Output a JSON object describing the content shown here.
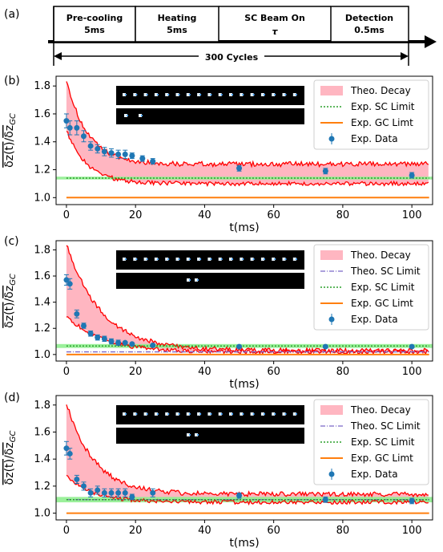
{
  "timeline": {
    "label": "(a)",
    "segments": [
      {
        "line1": "Pre-cooling",
        "line2": "5ms"
      },
      {
        "line1": "Heating",
        "line2": "5ms"
      },
      {
        "line1": "SC Beam On",
        "line2": "τ"
      },
      {
        "line1": "Detection",
        "line2": "0.5ms"
      }
    ],
    "cycles": "300 Cycles"
  },
  "colors": {
    "fill": "#ffb6c1",
    "curve": "#ff0000",
    "sc_exp": "#2ca02c",
    "band": "#90ee90",
    "gc": "#ff7f0e",
    "theo_sc": "#7b68c8",
    "data": "#1f77b4"
  },
  "chart_data": [
    {
      "type": "scatter",
      "panel": "(b)",
      "xlabel": "t(ms)",
      "ylabel": "δz(t)/δz_GC",
      "xlim": [
        -3,
        106
      ],
      "ylim": [
        0.95,
        1.87
      ],
      "xticks": [
        0,
        20,
        40,
        60,
        80,
        100
      ],
      "yticks": [
        1.0,
        1.2,
        1.4,
        1.6,
        1.8
      ],
      "theo_decay": {
        "upper_start": 1.85,
        "upper_end": 1.24,
        "lower_start": 1.48,
        "lower_end": 1.1,
        "tau": 6
      },
      "exp_sc_limit": 1.14,
      "exp_sc_band": [
        1.13,
        1.15
      ],
      "exp_gc_limit": 1.0,
      "exp_data": {
        "x": [
          0,
          1,
          3,
          5,
          7,
          9,
          11,
          13,
          15,
          17,
          19,
          22,
          25,
          50,
          75,
          100
        ],
        "y": [
          1.55,
          1.5,
          1.5,
          1.44,
          1.37,
          1.35,
          1.33,
          1.32,
          1.31,
          1.31,
          1.3,
          1.28,
          1.26,
          1.21,
          1.19,
          1.16
        ],
        "err": [
          0.05,
          0.05,
          0.05,
          0.04,
          0.03,
          0.03,
          0.03,
          0.03,
          0.03,
          0.03,
          0.02,
          0.02,
          0.02,
          0.02,
          0.02,
          0.02
        ]
      },
      "legend": [
        "Theo. Decay",
        "Exp. SC Limit",
        "Exp. GC Limt",
        "Exp. Data"
      ]
    },
    {
      "type": "scatter",
      "panel": "(c)",
      "xlabel": "t(ms)",
      "ylabel": "δz(t)/δz_GC",
      "xlim": [
        -3,
        106
      ],
      "ylim": [
        0.95,
        1.87
      ],
      "xticks": [
        0,
        20,
        40,
        60,
        80,
        100
      ],
      "yticks": [
        1.0,
        1.2,
        1.4,
        1.6,
        1.8
      ],
      "theo_decay": {
        "upper_start": 1.85,
        "upper_end": 1.03,
        "lower_start": 1.3,
        "lower_end": 1.02,
        "tau": 10
      },
      "theo_sc_limit": 1.02,
      "exp_sc_limit": 1.065,
      "exp_sc_band": [
        1.05,
        1.08
      ],
      "exp_gc_limit": 1.0,
      "exp_data": {
        "x": [
          0,
          1,
          3,
          5,
          7,
          9,
          11,
          13,
          15,
          17,
          19,
          25,
          50,
          75,
          100
        ],
        "y": [
          1.57,
          1.54,
          1.31,
          1.22,
          1.16,
          1.13,
          1.12,
          1.1,
          1.09,
          1.09,
          1.08,
          1.07,
          1.06,
          1.06,
          1.06
        ],
        "err": [
          0.04,
          0.04,
          0.03,
          0.02,
          0.02,
          0.02,
          0.02,
          0.02,
          0.02,
          0.01,
          0.01,
          0.01,
          0.01,
          0.01,
          0.01
        ]
      },
      "legend": [
        "Theo. Decay",
        "Theo. SC Limit",
        "Exp. SC Limit",
        "Exp. GC Limt",
        "Exp. Data"
      ]
    },
    {
      "type": "scatter",
      "panel": "(d)",
      "xlabel": "t(ms)",
      "ylabel": "δz(t)/δz_GC",
      "xlim": [
        -3,
        106
      ],
      "ylim": [
        0.95,
        1.87
      ],
      "xticks": [
        0,
        20,
        40,
        60,
        80,
        100
      ],
      "yticks": [
        1.0,
        1.2,
        1.4,
        1.6,
        1.8
      ],
      "theo_decay": {
        "upper_start": 1.82,
        "upper_end": 1.14,
        "lower_start": 1.27,
        "lower_end": 1.08,
        "tau": 8
      },
      "theo_sc_limit": 1.1,
      "exp_sc_limit": 1.1,
      "exp_sc_band": [
        1.08,
        1.12
      ],
      "exp_gc_limit": 1.0,
      "exp_data": {
        "x": [
          0,
          1,
          3,
          5,
          7,
          9,
          11,
          13,
          15,
          17,
          19,
          25,
          50,
          75,
          100
        ],
        "y": [
          1.48,
          1.44,
          1.25,
          1.2,
          1.15,
          1.17,
          1.15,
          1.15,
          1.15,
          1.15,
          1.12,
          1.15,
          1.13,
          1.1,
          1.09
        ],
        "err": [
          0.05,
          0.04,
          0.03,
          0.03,
          0.03,
          0.03,
          0.03,
          0.03,
          0.03,
          0.03,
          0.02,
          0.03,
          0.02,
          0.02,
          0.02
        ]
      },
      "legend": [
        "Theo. Decay",
        "Theo. SC Limit",
        "Exp. SC Limit",
        "Exp. GC Limt",
        "Exp. Data"
      ]
    }
  ]
}
